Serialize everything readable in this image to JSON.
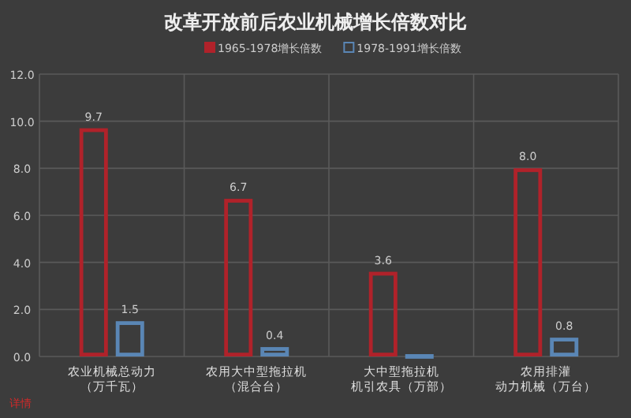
{
  "chart_data": {
    "type": "bar",
    "title": "改革开放前后农业机械增长倍数对比",
    "categories": [
      "农业机械总动力（万千瓦）",
      "农用大中型拖拉机（混合台）",
      "大中型拖拉机机引农具（万部）",
      "农用排灌动力机械（万台）"
    ],
    "series": [
      {
        "name": "1965-1978增长倍数",
        "color": "#b0222a",
        "values": [
          9.7,
          6.7,
          3.6,
          8.0
        ],
        "value_labels": [
          "9.7",
          "6.7",
          "3.6",
          "8.0"
        ]
      },
      {
        "name": "1978-1991增长倍数",
        "color": "#5a86b5",
        "values": [
          1.5,
          0.4,
          0.1,
          0.8
        ],
        "value_labels": [
          "1.5",
          "0.4",
          null,
          "0.8"
        ]
      }
    ],
    "ylim": [
      0,
      12
    ],
    "yticks": [
      {
        "value": 0,
        "label": "0.0"
      },
      {
        "value": 2,
        "label": "2.0"
      },
      {
        "value": 4,
        "label": "4.0"
      },
      {
        "value": 6,
        "label": "6.0"
      },
      {
        "value": 8,
        "label": "8.0"
      },
      {
        "value": 10,
        "label": "10.0"
      },
      {
        "value": 12,
        "label": "12.0"
      }
    ],
    "grid": true,
    "legend": "top",
    "annotations": [
      "详情"
    ]
  }
}
